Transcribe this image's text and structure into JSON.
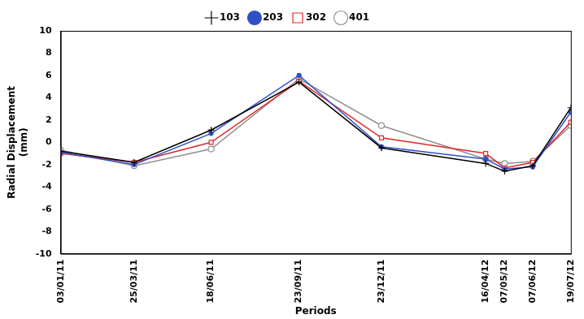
{
  "chart_data": {
    "type": "line",
    "x_label": "Periods",
    "y_label": [
      "Radial Displacement",
      "(mm)"
    ],
    "x": [
      "03/01/11",
      "25/03/11",
      "18/06/11",
      "23/09/11",
      "23/12/11",
      "16/04/12",
      "07/05/12",
      "07/06/12",
      "19/07/12"
    ],
    "xlim": [
      "03/01/11",
      "19/07/12"
    ],
    "xticks": [
      "03/01/11",
      "25/03/11",
      "18/06/11",
      "23/09/11",
      "23/12/11",
      "16/04/12",
      "07/05/12",
      "07/06/12",
      "19/07/12"
    ],
    "ylim": [
      -10,
      10
    ],
    "yticks": [
      -10,
      -8,
      -6,
      -4,
      -2,
      0,
      2,
      4,
      6,
      8,
      10
    ],
    "grid": false,
    "legend": "top",
    "series": [
      {
        "name": "103",
        "color": "#000000",
        "marker": "plus",
        "values": [
          -0.8,
          -1.8,
          1.1,
          5.4,
          -0.5,
          -1.9,
          -2.6,
          -2.1,
          3.1
        ]
      },
      {
        "name": "203",
        "color": "#3050c8",
        "marker": "filled_circle",
        "values": [
          -0.9,
          -2.0,
          0.8,
          6.0,
          -0.4,
          -1.5,
          -2.4,
          -2.2,
          2.7
        ]
      },
      {
        "name": "302",
        "color": "#e0282c",
        "marker": "open_square",
        "values": [
          -1.0,
          -1.8,
          0.0,
          5.5,
          0.4,
          -1.0,
          -2.3,
          -1.8,
          1.8
        ]
      },
      {
        "name": "401",
        "color": "#909090",
        "marker": "open_circle",
        "values": [
          -0.7,
          -2.1,
          -0.6,
          5.7,
          1.5,
          -1.5,
          -1.9,
          -1.7,
          1.5
        ]
      }
    ]
  }
}
